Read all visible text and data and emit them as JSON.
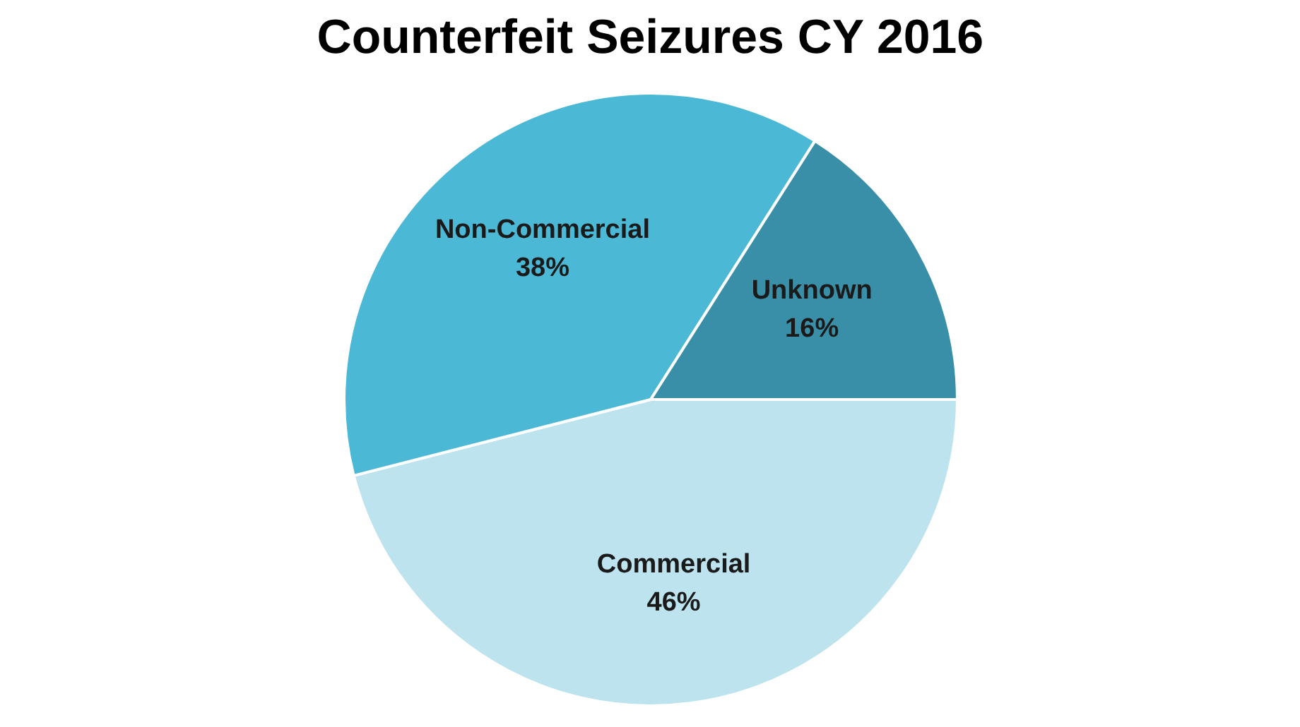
{
  "chart_data": {
    "type": "pie",
    "title": "Counterfeit Seizures CY 2016",
    "categories": [
      "Commercial",
      "Non-Commercial",
      "Unknown"
    ],
    "values": [
      46,
      38,
      16
    ],
    "value_labels": [
      "46%",
      "38%",
      "16%"
    ],
    "colors": [
      "#bde3ee",
      "#4bb8d6",
      "#3a8fa8"
    ]
  }
}
